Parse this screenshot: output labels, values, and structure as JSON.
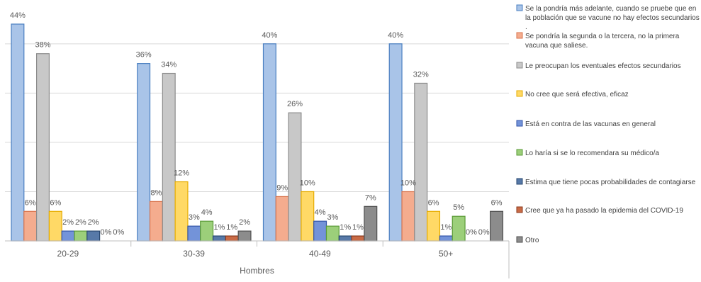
{
  "chart_data": {
    "type": "bar",
    "title": "",
    "xlabel": "Hombres",
    "ylabel": "",
    "ylim": [
      0,
      44
    ],
    "gridlines": [
      0,
      10,
      20,
      30,
      40
    ],
    "grid": true,
    "legend_position": "right",
    "categories": [
      "20-29",
      "30-39",
      "40-49",
      "50+"
    ],
    "series": [
      {
        "name": "Se la pondría más adelante, cuando se pruebe que en la población que se vacune no hay efectos secundarios .",
        "color": "#a9c4e8",
        "stroke": "#4a7fc1",
        "values": [
          44,
          36,
          40,
          40
        ],
        "labels": [
          "44%",
          "36%",
          "40%",
          "40%"
        ]
      },
      {
        "name": "Se pondría la segunda o la tercera, no la primera vacuna que saliese.",
        "color": "#f4ac8e",
        "stroke": "#d9744d",
        "values": [
          6,
          8,
          9,
          10
        ],
        "labels": [
          "6%",
          "8%",
          "9%",
          "10%"
        ]
      },
      {
        "name": "Le preocupan los eventuales efectos secundarios",
        "color": "#c8c8c8",
        "stroke": "#8c8c8c",
        "values": [
          38,
          34,
          26,
          32
        ],
        "labels": [
          "38%",
          "34%",
          "26%",
          "32%"
        ]
      },
      {
        "name": "No cree que será efectiva, eficaz",
        "color": "#ffd966",
        "stroke": "#e6ac00",
        "values": [
          6,
          12,
          10,
          6
        ],
        "labels": [
          "6%",
          "12%",
          "10%",
          "6%"
        ]
      },
      {
        "name": "Está en contra de las vacunas en general",
        "color": "#7393d9",
        "stroke": "#3355a8",
        "values": [
          2,
          3,
          4,
          1
        ],
        "labels": [
          "2%",
          "3%",
          "4%",
          "1%"
        ]
      },
      {
        "name": "Lo haría si se lo recomendara su médico/a",
        "color": "#9ccf7a",
        "stroke": "#5a9a37",
        "values": [
          2,
          4,
          3,
          5
        ],
        "labels": [
          "2%",
          "4%",
          "3%",
          "5%"
        ]
      },
      {
        "name": "Estima que tiene pocas probabilidades de contagiarse",
        "color": "#5779a8",
        "stroke": "#2a4870",
        "values": [
          2,
          1,
          1,
          0
        ],
        "labels": [
          "2%",
          "1%",
          "1%",
          "0%"
        ]
      },
      {
        "name": "Cree que ya ha pasado la epidemia del COVID-19",
        "color": "#c96b46",
        "stroke": "#8a3a1e",
        "values": [
          0,
          1,
          1,
          0
        ],
        "labels": [
          "0%",
          "1%",
          "1%",
          "0%"
        ]
      },
      {
        "name": "Otro",
        "color": "#8c8c8c",
        "stroke": "#505050",
        "values": [
          0,
          2,
          7,
          6
        ],
        "labels": [
          "0%",
          "2%",
          "7%",
          "6%"
        ]
      }
    ]
  }
}
